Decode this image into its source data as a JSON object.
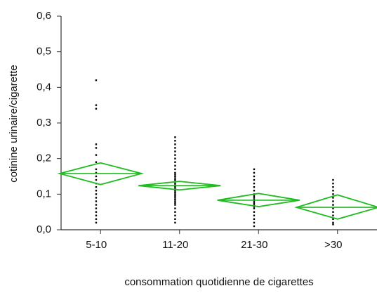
{
  "chart_data": {
    "type": "means_diamond",
    "x_label": "consommation quotidienne de cigarettes",
    "y_label": "cotinine urinaire/cigarette",
    "categories": [
      "5-10",
      "11-20",
      "21-30",
      ">30"
    ],
    "means": [
      0.158,
      0.124,
      0.083,
      0.063
    ],
    "ci_lower": [
      0.127,
      0.112,
      0.065,
      0.03
    ],
    "ci_upper": [
      0.188,
      0.136,
      0.102,
      0.098
    ],
    "points": [
      [
        0.42,
        0.35,
        0.34,
        0.24,
        0.23,
        0.21,
        0.19,
        0.17,
        0.16,
        0.15,
        0.14,
        0.13,
        0.12,
        0.11,
        0.1,
        0.09,
        0.08,
        0.07,
        0.06,
        0.05,
        0.04,
        0.03,
        0.02
      ],
      [
        0.26,
        0.25,
        0.24,
        0.23,
        0.22,
        0.21,
        0.2,
        0.19,
        0.18,
        0.17,
        0.16,
        0.155,
        0.15,
        0.145,
        0.14,
        0.135,
        0.13,
        0.125,
        0.12,
        0.115,
        0.11,
        0.105,
        0.1,
        0.095,
        0.09,
        0.085,
        0.08,
        0.075,
        0.07,
        0.06,
        0.05,
        0.04,
        0.03,
        0.02
      ],
      [
        0.17,
        0.16,
        0.15,
        0.14,
        0.13,
        0.12,
        0.11,
        0.1,
        0.095,
        0.09,
        0.085,
        0.08,
        0.075,
        0.07,
        0.065,
        0.06,
        0.05,
        0.04,
        0.03,
        0.02,
        0.01
      ],
      [
        0.14,
        0.13,
        0.12,
        0.11,
        0.1,
        0.09,
        0.08,
        0.07,
        0.06,
        0.05,
        0.04,
        0.03,
        0.02,
        0.015
      ]
    ],
    "color": "#22bb22",
    "point_color": "#000000",
    "ylim": [
      0,
      0.6
    ],
    "yticks": [
      {
        "value": 0,
        "label": "0,0"
      },
      {
        "value": 0.1,
        "label": "0,1"
      },
      {
        "value": 0.2,
        "label": "0,2"
      },
      {
        "value": 0.3,
        "label": "0,3"
      },
      {
        "value": 0.4,
        "label": "0,4"
      },
      {
        "value": 0.5,
        "label": "0,5"
      },
      {
        "value": 0.6,
        "label": "0,6"
      }
    ]
  }
}
